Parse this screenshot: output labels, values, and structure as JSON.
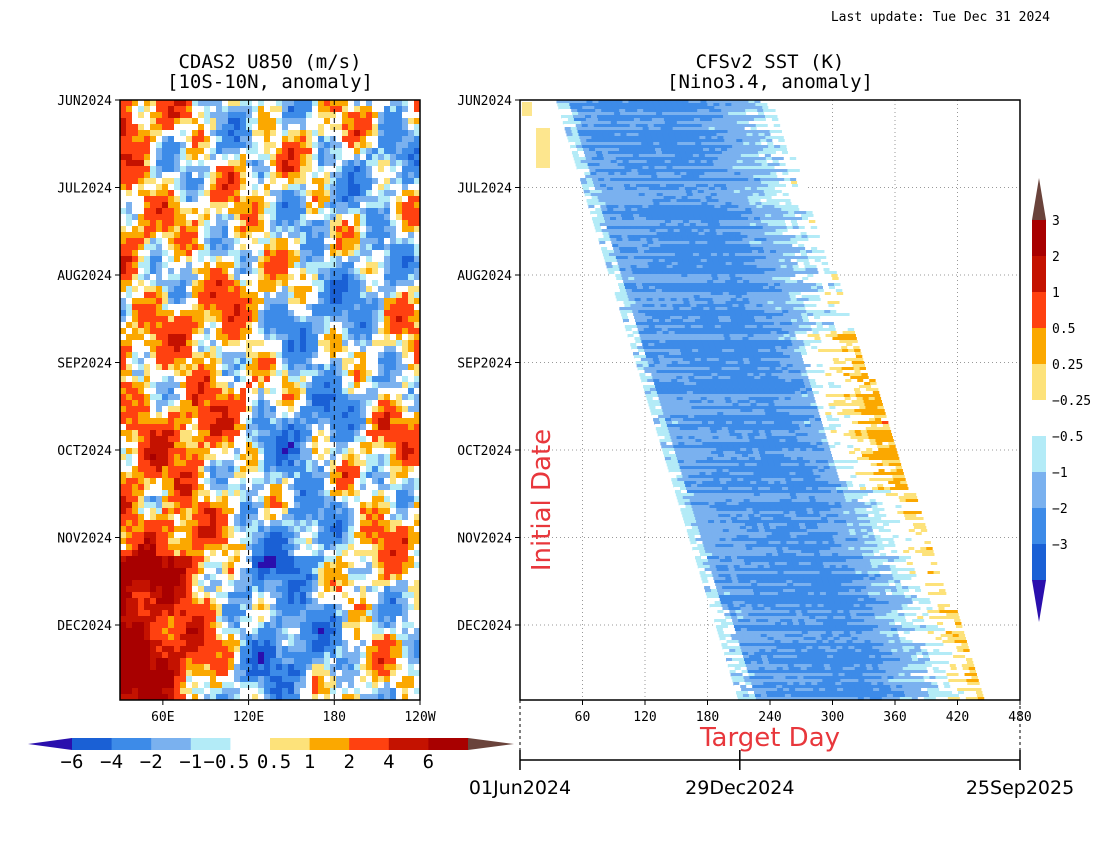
{
  "header": {
    "last_update": "Last update: Tue Dec 31 2024"
  },
  "chart_data": [
    {
      "type": "heatmap",
      "title": "CDAS2 U850 (m/s)",
      "subtitle": "[10S-10N, anomaly]",
      "y_ticks": [
        "JUN2024",
        "JUL2024",
        "AUG2024",
        "SEP2024",
        "OCT2024",
        "NOV2024",
        "DEC2024"
      ],
      "x_ticks": [
        "60E",
        "120E",
        "180",
        "120W"
      ],
      "x_tick_positions_deg": [
        60,
        120,
        180,
        240
      ],
      "xlim_deg": [
        30,
        240
      ],
      "dashed_meridians_deg": [
        120,
        180
      ],
      "colorbar_labels": [
        "-6",
        "-4",
        "-2",
        "-1",
        "-0.5",
        "0.5",
        "1",
        "2",
        "4",
        "6"
      ],
      "colorbar_levels": [
        -6,
        -4,
        -2,
        -1,
        -0.5,
        0.5,
        1,
        2,
        4,
        6
      ],
      "colorbar_colors": [
        "#2a0fad",
        "#1a60d5",
        "#3d8be8",
        "#7ab1ef",
        "#b3ebf7",
        "#ffffff",
        "#fde27a",
        "#fba800",
        "#ff4110",
        "#c41200",
        "#a80000",
        "#6a433b"
      ],
      "colorbar_orientation": "horizontal"
    },
    {
      "type": "heatmap",
      "title": "CFSv2 SST (K)",
      "subtitle": "[Nino3.4, anomaly]",
      "ylabel": "Initial Date",
      "xlabel": "Target Day",
      "y_ticks": [
        "JUN2024",
        "JUL2024",
        "AUG2024",
        "SEP2024",
        "OCT2024",
        "NOV2024",
        "DEC2024"
      ],
      "x_ticks": [
        60,
        120,
        180,
        240,
        300,
        360,
        420,
        480
      ],
      "xlim": [
        0,
        480
      ],
      "time_axis_labels": [
        "01Jun2024",
        "29Dec2024",
        "25Sep2025"
      ],
      "colorbar_labels": [
        "3",
        "2",
        "1",
        "0.5",
        "0.25",
        "-0.25",
        "-0.5",
        "-1",
        "-2",
        "-3"
      ],
      "colorbar_levels": [
        -3,
        -2,
        -1,
        -0.5,
        -0.25,
        0.25,
        0.5,
        1,
        2,
        3
      ],
      "colorbar_colors": [
        "#2a0fad",
        "#1a60d5",
        "#3d8be8",
        "#7ab1ef",
        "#b3ebf7",
        "#ffffff",
        "#fde27a",
        "#fba800",
        "#ff4110",
        "#c41200",
        "#a80000",
        "#6a433b"
      ],
      "colorbar_orientation": "vertical"
    }
  ]
}
